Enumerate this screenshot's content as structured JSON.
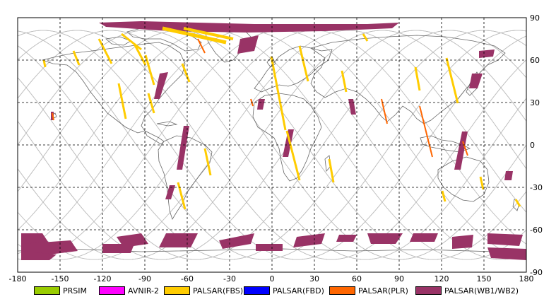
{
  "map": {
    "lon_range": [
      -180,
      180
    ],
    "lat_range": [
      -90,
      90
    ],
    "lon_ticks": [
      -180,
      -150,
      -120,
      -90,
      -60,
      -30,
      0,
      30,
      60,
      90,
      120,
      150,
      180
    ],
    "lat_ticks": [
      90,
      60,
      30,
      0,
      -30,
      -60,
      -90
    ],
    "lon_tick_labels": [
      "-180",
      "-150",
      "-120",
      "-90",
      "-60",
      "-30",
      "0",
      "30",
      "60",
      "90",
      "120",
      "150",
      "180"
    ],
    "lat_tick_labels": [
      "90",
      "60",
      "30",
      "0",
      "-30",
      "-60",
      "-90"
    ],
    "grid": "dashed",
    "colors": {
      "prism": "#99cc00",
      "avnir": "#ff00ff",
      "fbs": "#ffcc00",
      "fbd": "#0000ff",
      "plr": "#ff6600",
      "wb": "#993366",
      "orbit": "#c0c0c0",
      "coast": "#666666"
    }
  },
  "legend": {
    "items": [
      {
        "label": "PRSIM",
        "color": "#99cc00"
      },
      {
        "label": "AVNIR-2",
        "color": "#ff00ff"
      },
      {
        "label": "PALSAR(FBS)",
        "color": "#ffcc00"
      },
      {
        "label": "PALSAR(FBD)",
        "color": "#0000ff"
      },
      {
        "label": "PALSAR(PLR)",
        "color": "#ff6600"
      },
      {
        "label": "PALSAR(WB1/WB2)",
        "color": "#993366"
      }
    ]
  }
}
